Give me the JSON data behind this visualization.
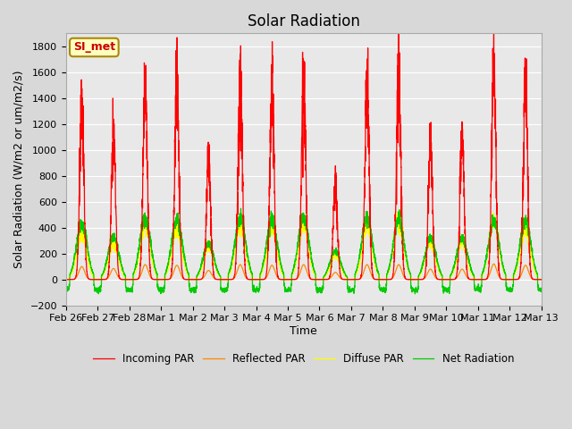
{
  "title": "Solar Radiation",
  "xlabel": "Time",
  "ylabel": "Solar Radiation (W/m2 or um/m2/s)",
  "ylim": [
    -200,
    1900
  ],
  "yticks": [
    -200,
    0,
    200,
    400,
    600,
    800,
    1000,
    1200,
    1400,
    1600,
    1800
  ],
  "xtick_labels": [
    "Feb 26",
    "Feb 27",
    "Feb 28",
    "Mar 1",
    "Mar 2",
    "Mar 3",
    "Mar 4",
    "Mar 5",
    "Mar 6",
    "Mar 7",
    "Mar 8",
    "Mar 9",
    "Mar 10",
    "Mar 11",
    "Mar 12",
    "Mar 13"
  ],
  "site_label": "SI_met",
  "colors": {
    "incoming": "#ff0000",
    "reflected": "#ff8800",
    "diffuse": "#ffff00",
    "net": "#00cc00"
  },
  "legend_labels": [
    "Incoming PAR",
    "Reflected PAR",
    "Diffuse PAR",
    "Net Radiation"
  ],
  "fig_facecolor": "#d8d8d8",
  "ax_facecolor": "#e8e8e8",
  "grid_color": "#ffffff",
  "n_days": 15,
  "pts_per_day": 288,
  "title_fontsize": 12,
  "label_fontsize": 9,
  "tick_fontsize": 8,
  "day_peaks_inc": [
    1350,
    1115,
    1510,
    1510,
    940,
    1545,
    1500,
    1580,
    750,
    1550,
    1600,
    1070,
    1090,
    1650,
    1545
  ],
  "day_peaks_ref": [
    100,
    85,
    115,
    110,
    70,
    115,
    110,
    115,
    55,
    115,
    115,
    80,
    80,
    120,
    110
  ],
  "day_peaks_dif": [
    350,
    280,
    420,
    390,
    260,
    420,
    400,
    430,
    190,
    420,
    460,
    290,
    290,
    450,
    390
  ],
  "day_peaks_net": [
    430,
    330,
    480,
    460,
    280,
    480,
    460,
    480,
    220,
    480,
    460,
    320,
    320,
    450,
    450
  ],
  "net_night": -80
}
